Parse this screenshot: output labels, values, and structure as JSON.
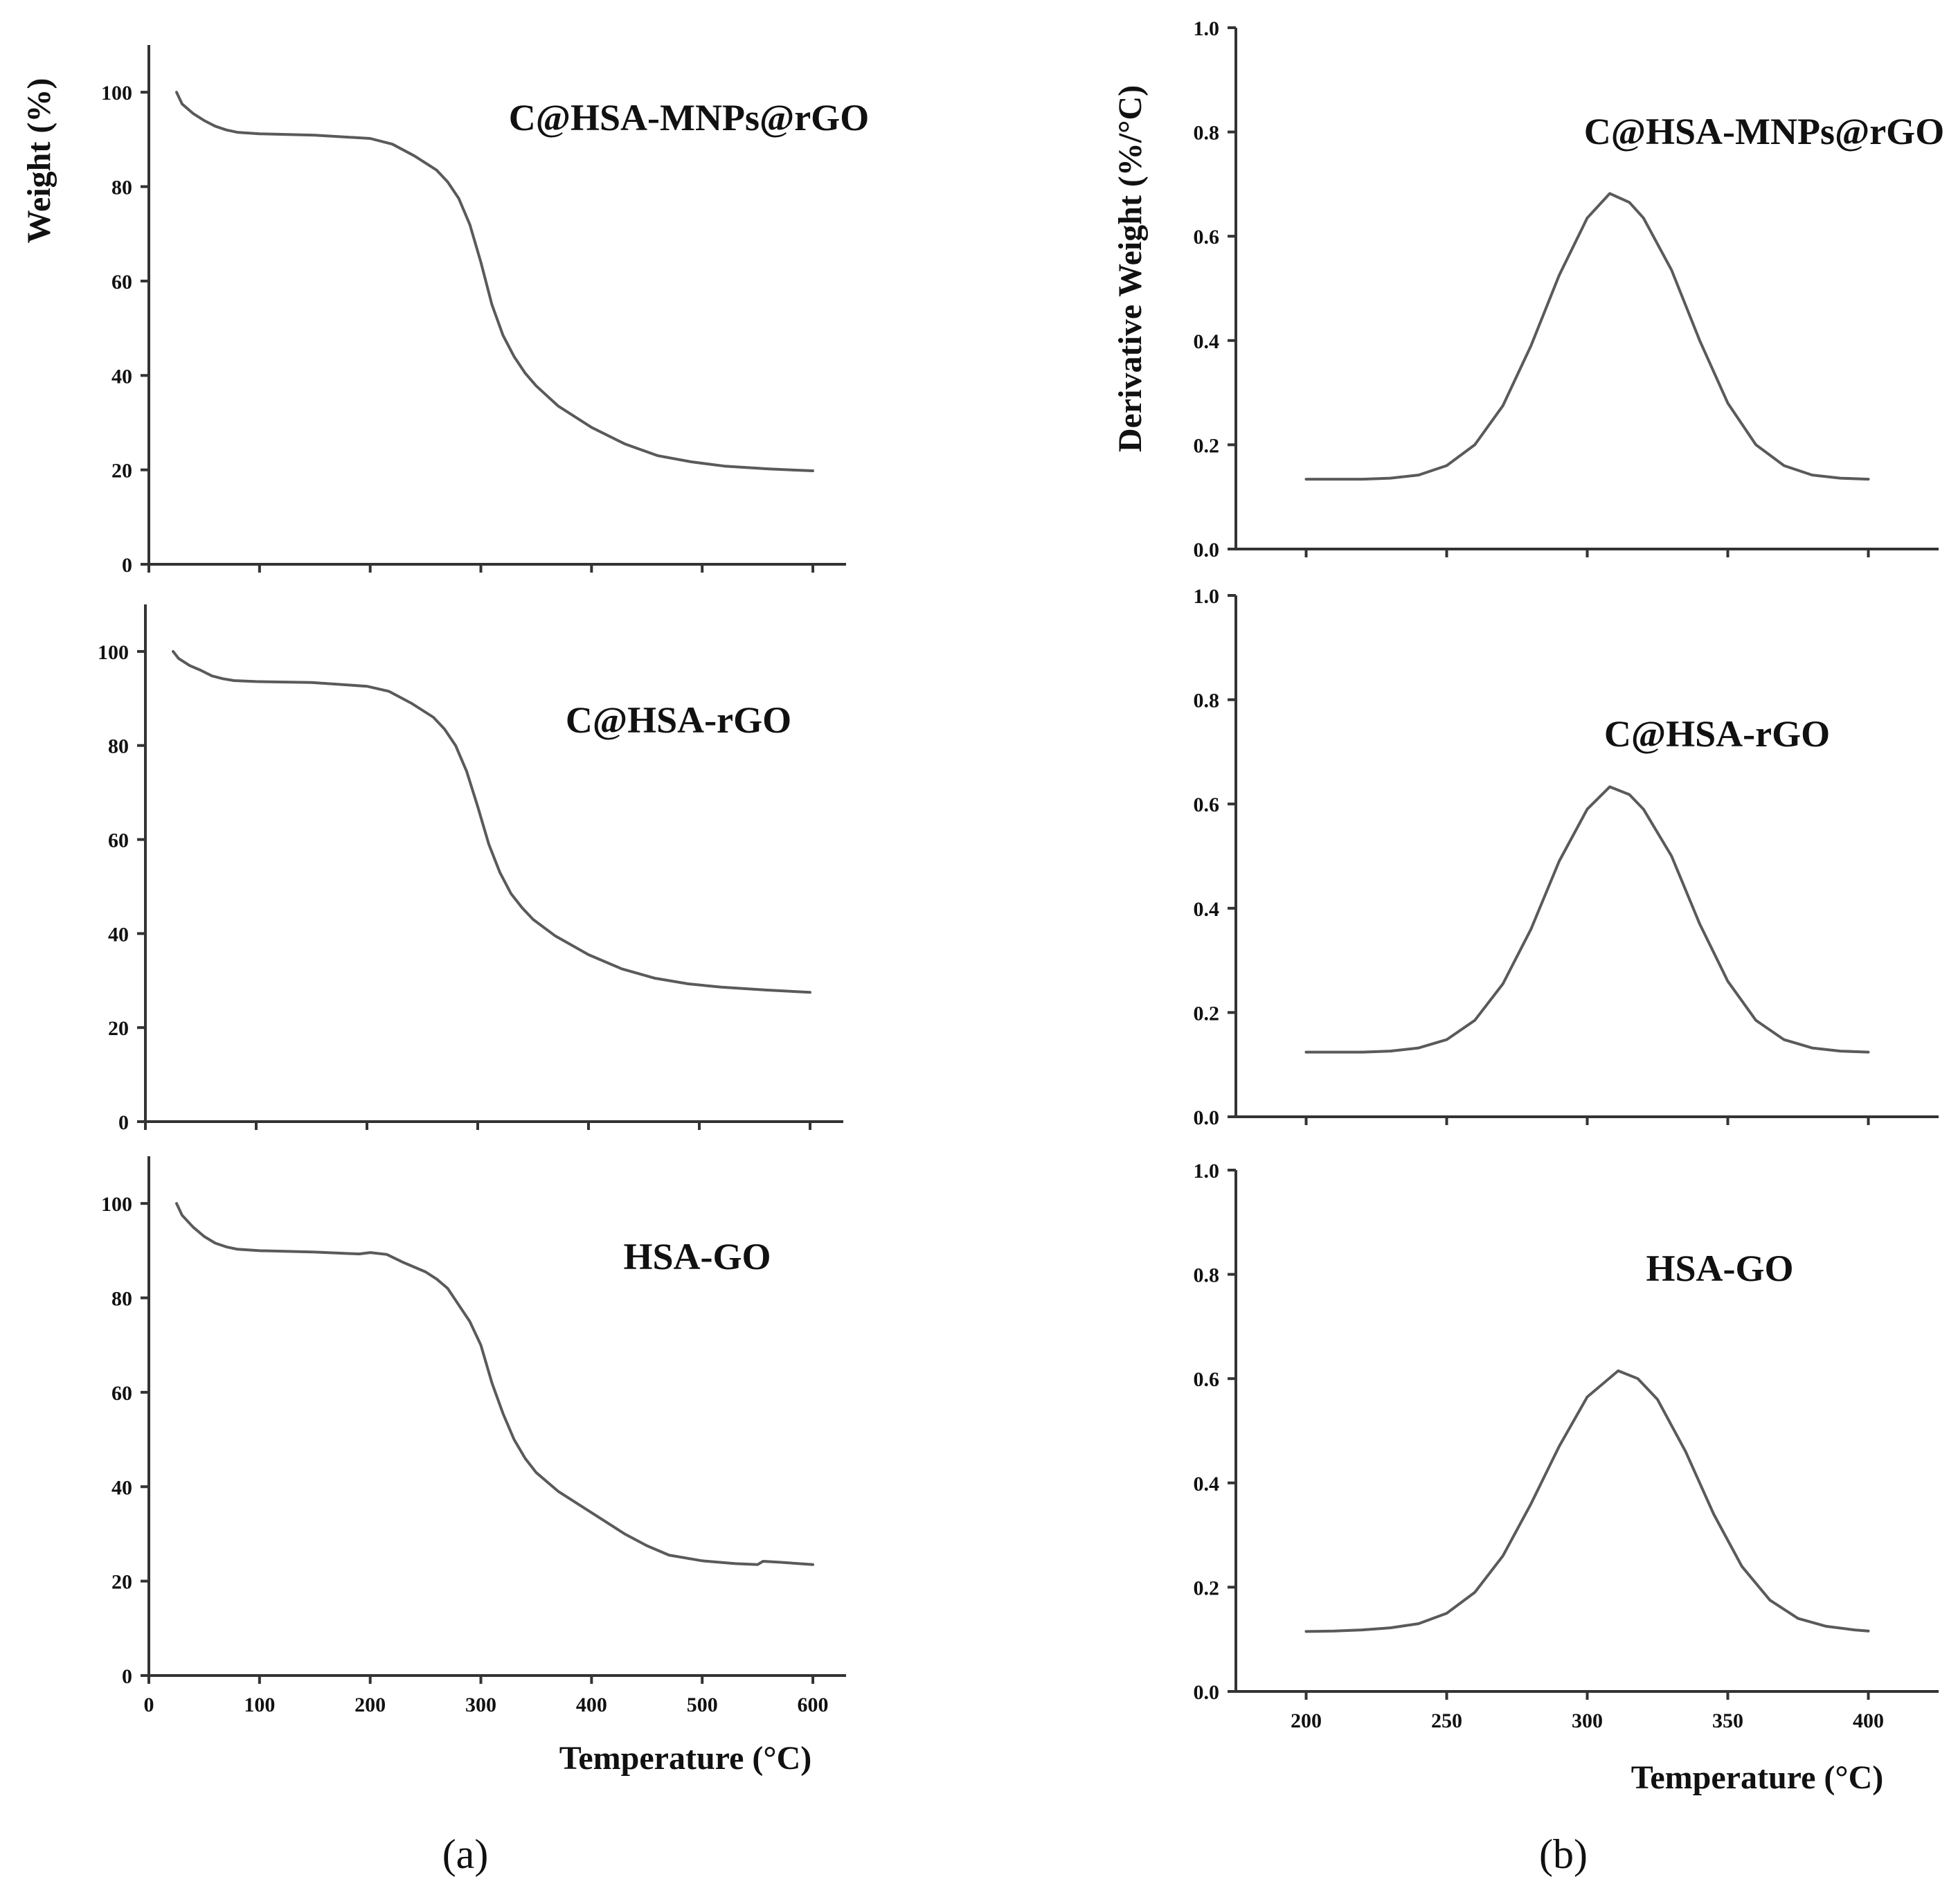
{
  "figure": {
    "label_a": "(a)",
    "label_b": "(b)"
  },
  "chart_data": [
    {
      "id": "tga-c-hsa-mnps-rgo",
      "type": "line",
      "title": "C@HSA-MNPs@rGO",
      "xlabel": "",
      "ylabel": "Weight (%)",
      "xlim": [
        0,
        630
      ],
      "ylim": [
        0,
        110
      ],
      "xticks": [
        0,
        100,
        200,
        300,
        400,
        500,
        600
      ],
      "yticks": [
        0,
        20,
        40,
        60,
        80,
        100
      ],
      "show_xtick_labels": false,
      "series": [
        {
          "name": "C@HSA-MNPs@rGO",
          "x": [
            25,
            30,
            40,
            50,
            60,
            70,
            80,
            100,
            150,
            200,
            220,
            240,
            260,
            270,
            280,
            290,
            300,
            310,
            320,
            330,
            340,
            350,
            370,
            400,
            430,
            460,
            490,
            520,
            560,
            600
          ],
          "y": [
            100,
            97.5,
            95.5,
            94,
            92.8,
            92,
            91.5,
            91.2,
            90.9,
            90.2,
            89,
            86.5,
            83.5,
            81,
            77.5,
            72,
            64,
            55,
            48.5,
            44,
            40.5,
            37.8,
            33.5,
            29,
            25.5,
            23,
            21.7,
            20.8,
            20.2,
            19.8
          ]
        }
      ]
    },
    {
      "id": "tga-c-hsa-rgo",
      "type": "line",
      "title": "C@HSA-rGO",
      "xlabel": "",
      "ylabel": "",
      "xlim": [
        0,
        630
      ],
      "ylim": [
        0,
        110
      ],
      "xticks": [
        0,
        100,
        200,
        300,
        400,
        500,
        600
      ],
      "yticks": [
        0,
        20,
        40,
        60,
        80,
        100
      ],
      "show_xtick_labels": false,
      "series": [
        {
          "name": "C@HSA-rGO",
          "x": [
            25,
            30,
            40,
            50,
            60,
            70,
            80,
            100,
            150,
            200,
            220,
            240,
            260,
            270,
            280,
            290,
            300,
            310,
            320,
            330,
            340,
            350,
            370,
            400,
            430,
            460,
            490,
            520,
            560,
            600
          ],
          "y": [
            100,
            98.5,
            97,
            96,
            94.8,
            94.2,
            93.8,
            93.6,
            93.4,
            92.6,
            91.5,
            89,
            86,
            83.5,
            80,
            74.5,
            67,
            59,
            53,
            48.5,
            45.5,
            43,
            39.5,
            35.5,
            32.5,
            30.5,
            29.3,
            28.6,
            28,
            27.5
          ]
        }
      ]
    },
    {
      "id": "tga-hsa-go",
      "type": "line",
      "title": "HSA-GO",
      "xlabel": "Temperature (°C)",
      "ylabel": "",
      "xlim": [
        0,
        630
      ],
      "ylim": [
        0,
        110
      ],
      "xticks": [
        0,
        100,
        200,
        300,
        400,
        500,
        600
      ],
      "yticks": [
        0,
        20,
        40,
        60,
        80,
        100
      ],
      "show_xtick_labels": true,
      "series": [
        {
          "name": "HSA-GO",
          "x": [
            25,
            30,
            40,
            50,
            60,
            70,
            80,
            100,
            150,
            190,
            200,
            215,
            230,
            250,
            260,
            270,
            280,
            290,
            300,
            310,
            320,
            330,
            340,
            350,
            370,
            400,
            420,
            430,
            450,
            470,
            500,
            530,
            550,
            555,
            570,
            600
          ],
          "y": [
            100,
            97.5,
            95,
            93,
            91.6,
            90.8,
            90.3,
            90,
            89.7,
            89.3,
            89.6,
            89.2,
            87.5,
            85.5,
            84,
            82,
            78.5,
            75,
            70,
            62,
            55.5,
            50,
            46,
            43,
            39,
            34.5,
            31.5,
            30,
            27.5,
            25.5,
            24.3,
            23.7,
            23.5,
            24.2,
            24,
            23.5
          ]
        }
      ]
    },
    {
      "id": "dtg-c-hsa-mnps-rgo",
      "type": "line",
      "title": "C@HSA-MNPs@rGO",
      "xlabel": "",
      "ylabel": "Derivative Weight (%/°C)",
      "xlim": [
        175,
        425
      ],
      "ylim": [
        0,
        1.0
      ],
      "xticks": [
        200,
        250,
        300,
        350,
        400
      ],
      "yticks": [
        0.0,
        0.2,
        0.4,
        0.6,
        0.8,
        1.0
      ],
      "show_xtick_labels": false,
      "series": [
        {
          "name": "C@HSA-MNPs@rGO",
          "x": [
            200,
            210,
            220,
            230,
            240,
            250,
            260,
            270,
            280,
            290,
            300,
            308,
            315,
            320,
            330,
            340,
            350,
            360,
            370,
            380,
            390,
            400
          ],
          "y": [
            0.134,
            0.134,
            0.134,
            0.136,
            0.142,
            0.16,
            0.2,
            0.275,
            0.39,
            0.525,
            0.635,
            0.682,
            0.665,
            0.635,
            0.535,
            0.4,
            0.28,
            0.2,
            0.16,
            0.142,
            0.136,
            0.134
          ]
        }
      ]
    },
    {
      "id": "dtg-c-hsa-rgo",
      "type": "line",
      "title": "C@HSA-rGO",
      "xlabel": "",
      "ylabel": "",
      "xlim": [
        175,
        425
      ],
      "ylim": [
        0,
        1.0
      ],
      "xticks": [
        200,
        250,
        300,
        350,
        400
      ],
      "yticks": [
        0.0,
        0.2,
        0.4,
        0.6,
        0.8,
        1.0
      ],
      "show_xtick_labels": false,
      "series": [
        {
          "name": "C@HSA-rGO",
          "x": [
            200,
            210,
            220,
            230,
            240,
            250,
            260,
            270,
            280,
            290,
            300,
            308,
            315,
            320,
            330,
            340,
            350,
            360,
            370,
            380,
            390,
            400
          ],
          "y": [
            0.124,
            0.124,
            0.124,
            0.126,
            0.132,
            0.148,
            0.185,
            0.255,
            0.36,
            0.49,
            0.59,
            0.633,
            0.618,
            0.59,
            0.5,
            0.37,
            0.26,
            0.185,
            0.148,
            0.132,
            0.126,
            0.124
          ]
        }
      ]
    },
    {
      "id": "dtg-hsa-go",
      "type": "line",
      "title": "HSA-GO",
      "xlabel": "Temperature (°C)",
      "ylabel": "",
      "xlim": [
        175,
        425
      ],
      "ylim": [
        0,
        1.0
      ],
      "xticks": [
        200,
        250,
        300,
        350,
        400
      ],
      "yticks": [
        0.0,
        0.2,
        0.4,
        0.6,
        0.8,
        1.0
      ],
      "show_xtick_labels": true,
      "series": [
        {
          "name": "HSA-GO",
          "x": [
            200,
            210,
            220,
            230,
            240,
            250,
            260,
            270,
            280,
            290,
            300,
            311,
            318,
            325,
            335,
            345,
            355,
            365,
            375,
            385,
            395,
            400
          ],
          "y": [
            0.115,
            0.116,
            0.118,
            0.122,
            0.13,
            0.15,
            0.19,
            0.26,
            0.36,
            0.47,
            0.565,
            0.615,
            0.6,
            0.56,
            0.46,
            0.34,
            0.24,
            0.175,
            0.14,
            0.125,
            0.118,
            0.116
          ]
        }
      ]
    }
  ]
}
